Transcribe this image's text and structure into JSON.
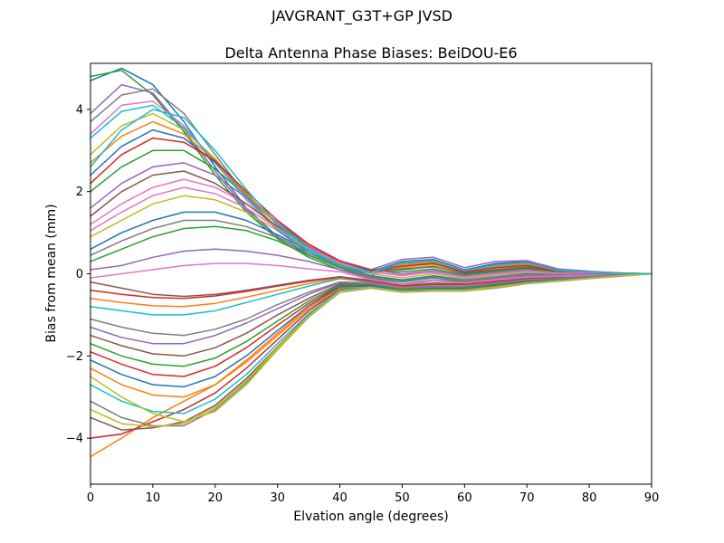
{
  "suptitle": "JAVGRANT_G3T+GP JVSD",
  "chart_data": {
    "type": "line",
    "title": "Delta Antenna Phase Biases: BeiDOU-E6",
    "xlabel": "Elvation angle (degrees)",
    "ylabel": "Bias from mean (mm)",
    "xlim": [
      0,
      90
    ],
    "ylim": [
      -5.12,
      5.12
    ],
    "xticks": [
      0,
      10,
      20,
      30,
      40,
      50,
      60,
      70,
      80,
      90
    ],
    "yticks": [
      -4,
      -2,
      0,
      2,
      4
    ],
    "grid": false,
    "legend": "none",
    "frame_color": "#000000",
    "line_width": 1.5,
    "x": [
      0,
      5,
      10,
      15,
      20,
      25,
      30,
      35,
      40,
      45,
      50,
      55,
      60,
      65,
      70,
      75,
      80,
      85,
      90
    ],
    "series": [
      {
        "color": "#1f77b4",
        "values": [
          4.7,
          5.0,
          4.6,
          3.7,
          2.6,
          1.6,
          0.9,
          0.45,
          0.15,
          0.05,
          0.3,
          0.35,
          0.1,
          0.25,
          0.3,
          0.1,
          0.05,
          0.02,
          0
        ]
      },
      {
        "color": "#ff7f0e",
        "values": [
          -4.45,
          -4.0,
          -3.5,
          -3.1,
          -2.7,
          -2.1,
          -1.45,
          -0.8,
          -0.33,
          -0.27,
          -0.37,
          -0.34,
          -0.34,
          -0.27,
          -0.18,
          -0.13,
          -0.09,
          -0.04,
          0
        ]
      },
      {
        "color": "#2ca02c",
        "values": [
          4.8,
          4.95,
          4.35,
          3.45,
          2.4,
          1.5,
          0.85,
          0.4,
          0.1,
          -0.05,
          0.25,
          0.3,
          0.05,
          0.2,
          0.25,
          0.08,
          0.04,
          0.01,
          0
        ]
      },
      {
        "color": "#d62728",
        "values": [
          -4.0,
          -3.9,
          -3.6,
          -3.3,
          -2.9,
          -2.3,
          -1.6,
          -0.9,
          -0.38,
          -0.3,
          -0.4,
          -0.37,
          -0.37,
          -0.3,
          -0.2,
          -0.15,
          -0.1,
          -0.05,
          0
        ]
      },
      {
        "color": "#9467bd",
        "values": [
          3.9,
          4.6,
          4.4,
          3.5,
          2.5,
          1.55,
          0.9,
          0.5,
          0.2,
          0.1,
          0.35,
          0.4,
          0.15,
          0.3,
          0.32,
          0.12,
          0.06,
          0.02,
          0
        ]
      },
      {
        "color": "#8c564b",
        "values": [
          -3.5,
          -3.8,
          -3.75,
          -3.6,
          -3.2,
          -2.55,
          -1.78,
          -1.0,
          -0.42,
          -0.33,
          -0.43,
          -0.4,
          -0.4,
          -0.33,
          -0.22,
          -0.17,
          -0.11,
          -0.05,
          0
        ]
      },
      {
        "color": "#e377c2",
        "values": [
          3.4,
          4.1,
          4.2,
          3.6,
          2.7,
          1.8,
          1.05,
          0.55,
          0.2,
          0,
          0.2,
          0.28,
          0.06,
          0.18,
          0.22,
          0.07,
          0.03,
          0.01,
          0
        ]
      },
      {
        "color": "#7f7f7f",
        "values": [
          -3.1,
          -3.5,
          -3.7,
          -3.7,
          -3.3,
          -2.65,
          -1.85,
          -1.05,
          -0.45,
          -0.35,
          -0.45,
          -0.42,
          -0.42,
          -0.35,
          -0.24,
          -0.18,
          -0.12,
          -0.06,
          0
        ]
      },
      {
        "color": "#bcbd22",
        "values": [
          2.9,
          3.6,
          3.9,
          3.5,
          2.8,
          1.9,
          1.1,
          0.6,
          0.25,
          0.05,
          0.15,
          0.22,
          0.03,
          0.12,
          0.18,
          0.05,
          0.02,
          0.01,
          0
        ]
      },
      {
        "color": "#17becf",
        "values": [
          -2.7,
          -3.1,
          -3.35,
          -3.4,
          -3.05,
          -2.45,
          -1.7,
          -0.97,
          -0.4,
          -0.32,
          -0.44,
          -0.4,
          -0.4,
          -0.32,
          -0.22,
          -0.16,
          -0.11,
          -0.05,
          0
        ]
      },
      {
        "color": "#1f77b4",
        "values": [
          2.4,
          3.1,
          3.5,
          3.3,
          2.7,
          1.95,
          1.2,
          0.65,
          0.3,
          0.1,
          0.1,
          0.18,
          0,
          0.08,
          0.15,
          0.04,
          0.02,
          0,
          0
        ]
      },
      {
        "color": "#ff7f0e",
        "values": [
          -2.3,
          -2.7,
          -2.95,
          -3.0,
          -2.7,
          -2.15,
          -1.5,
          -0.85,
          -0.35,
          -0.3,
          -0.42,
          -0.38,
          -0.37,
          -0.3,
          -0.2,
          -0.15,
          -0.1,
          -0.05,
          0
        ]
      },
      {
        "color": "#2ca02c",
        "values": [
          2.0,
          2.6,
          3.0,
          3.0,
          2.55,
          1.9,
          1.2,
          0.7,
          0.3,
          0.08,
          0.05,
          0.12,
          -0.03,
          0.05,
          0.12,
          0.03,
          0.01,
          0,
          0
        ]
      },
      {
        "color": "#d62728",
        "values": [
          -1.9,
          -2.2,
          -2.45,
          -2.5,
          -2.25,
          -1.8,
          -1.25,
          -0.72,
          -0.3,
          -0.28,
          -0.4,
          -0.36,
          -0.35,
          -0.27,
          -0.18,
          -0.13,
          -0.09,
          -0.04,
          0
        ]
      },
      {
        "color": "#9467bd",
        "values": [
          1.6,
          2.2,
          2.6,
          2.7,
          2.4,
          1.85,
          1.25,
          0.72,
          0.32,
          0.1,
          0,
          0.08,
          -0.06,
          0.02,
          0.08,
          0.02,
          0.01,
          0,
          0
        ]
      },
      {
        "color": "#8c564b",
        "values": [
          -1.5,
          -1.75,
          -1.95,
          -2.0,
          -1.8,
          -1.45,
          -1.0,
          -0.6,
          -0.25,
          -0.25,
          -0.38,
          -0.33,
          -0.32,
          -0.25,
          -0.16,
          -0.12,
          -0.08,
          -0.04,
          0
        ]
      },
      {
        "color": "#e377c2",
        "values": [
          1.2,
          1.7,
          2.1,
          2.3,
          2.1,
          1.7,
          1.15,
          0.68,
          0.3,
          0.05,
          -0.05,
          0.05,
          -0.1,
          -0.02,
          0.05,
          0.01,
          0,
          0,
          0
        ]
      },
      {
        "color": "#7f7f7f",
        "values": [
          -1.1,
          -1.3,
          -1.45,
          -1.5,
          -1.35,
          -1.1,
          -0.75,
          -0.45,
          -0.2,
          -0.22,
          -0.35,
          -0.3,
          -0.3,
          -0.22,
          -0.14,
          -0.1,
          -0.07,
          -0.03,
          0
        ]
      },
      {
        "color": "#bcbd22",
        "values": [
          0.9,
          1.3,
          1.7,
          1.9,
          1.8,
          1.5,
          1.05,
          0.6,
          0.25,
          0,
          -0.1,
          0,
          -0.12,
          -0.05,
          0.02,
          0,
          0,
          0,
          0
        ]
      },
      {
        "color": "#17becf",
        "values": [
          -0.8,
          -0.9,
          -1.0,
          -1.0,
          -0.9,
          -0.7,
          -0.5,
          -0.3,
          -0.12,
          -0.2,
          -0.32,
          -0.28,
          -0.28,
          -0.2,
          -0.12,
          -0.09,
          -0.06,
          -0.03,
          0
        ]
      },
      {
        "color": "#1f77b4",
        "values": [
          0.6,
          1.0,
          1.3,
          1.5,
          1.5,
          1.3,
          0.95,
          0.55,
          0.2,
          -0.05,
          -0.15,
          -0.05,
          -0.15,
          -0.08,
          0,
          -0.02,
          -0.01,
          0,
          0
        ]
      },
      {
        "color": "#ff7f0e",
        "values": [
          -0.6,
          -0.7,
          -0.78,
          -0.8,
          -0.72,
          -0.57,
          -0.4,
          -0.24,
          -0.1,
          -0.19,
          -0.31,
          -0.27,
          -0.27,
          -0.2,
          -0.12,
          -0.09,
          -0.06,
          -0.03,
          0
        ]
      },
      {
        "color": "#2ca02c",
        "values": [
          0.3,
          0.6,
          0.9,
          1.1,
          1.15,
          1.05,
          0.8,
          0.45,
          0.15,
          -0.1,
          -0.2,
          -0.1,
          -0.18,
          -0.1,
          -0.03,
          -0.03,
          -0.02,
          -0.01,
          0
        ]
      },
      {
        "color": "#d62728",
        "values": [
          -0.4,
          -0.5,
          -0.58,
          -0.6,
          -0.54,
          -0.43,
          -0.3,
          -0.18,
          -0.08,
          -0.18,
          -0.3,
          -0.26,
          -0.26,
          -0.19,
          -0.11,
          -0.08,
          -0.05,
          -0.02,
          0
        ]
      },
      {
        "color": "#9467bd",
        "values": [
          0.1,
          0.2,
          0.4,
          0.55,
          0.6,
          0.55,
          0.45,
          0.3,
          0.1,
          -0.12,
          -0.25,
          -0.15,
          -0.2,
          -0.12,
          -0.05,
          -0.05,
          -0.03,
          -0.01,
          0
        ]
      },
      {
        "color": "#8c564b",
        "values": [
          -0.2,
          -0.35,
          -0.5,
          -0.55,
          -0.5,
          -0.4,
          -0.28,
          -0.16,
          -0.07,
          -0.16,
          -0.28,
          -0.24,
          -0.24,
          -0.17,
          -0.1,
          -0.07,
          -0.04,
          -0.02,
          0
        ]
      },
      {
        "color": "#e377c2",
        "values": [
          -0.1,
          0,
          0.1,
          0.2,
          0.25,
          0.25,
          0.2,
          0.12,
          0.05,
          -0.14,
          -0.26,
          -0.2,
          -0.22,
          -0.15,
          -0.08,
          -0.06,
          -0.04,
          -0.02,
          0
        ]
      },
      {
        "color": "#7f7f7f",
        "values": [
          3.7,
          4.35,
          4.5,
          3.9,
          2.9,
          1.9,
          1.05,
          0.5,
          0.18,
          0.02,
          0.28,
          0.33,
          0.08,
          0.22,
          0.28,
          0.09,
          0.04,
          0.02,
          0
        ]
      },
      {
        "color": "#bcbd22",
        "values": [
          -3.3,
          -3.65,
          -3.72,
          -3.65,
          -3.25,
          -2.6,
          -1.8,
          -1.02,
          -0.43,
          -0.34,
          -0.44,
          -0.41,
          -0.41,
          -0.34,
          -0.23,
          -0.17,
          -0.11,
          -0.05,
          0
        ]
      },
      {
        "color": "#17becf",
        "values": [
          3.3,
          3.95,
          4.1,
          3.55,
          2.75,
          1.85,
          1.08,
          0.56,
          0.21,
          0.03,
          0.24,
          0.3,
          0.07,
          0.19,
          0.24,
          0.08,
          0.03,
          0.01,
          0
        ]
      },
      {
        "color": "#1f77b4",
        "values": [
          -2.1,
          -2.45,
          -2.7,
          -2.75,
          -2.5,
          -2.0,
          -1.38,
          -0.78,
          -0.32,
          -0.29,
          -0.41,
          -0.37,
          -0.36,
          -0.28,
          -0.19,
          -0.14,
          -0.09,
          -0.04,
          0
        ]
      },
      {
        "color": "#ff7f0e",
        "values": [
          2.7,
          3.35,
          3.7,
          3.4,
          2.75,
          1.95,
          1.18,
          0.62,
          0.25,
          0.04,
          0.22,
          0.28,
          0.06,
          0.17,
          0.22,
          0.07,
          0.03,
          0.01,
          0
        ]
      },
      {
        "color": "#2ca02c",
        "values": [
          -1.7,
          -2.0,
          -2.2,
          -2.25,
          -2.05,
          -1.65,
          -1.15,
          -0.66,
          -0.28,
          -0.26,
          -0.39,
          -0.35,
          -0.34,
          -0.26,
          -0.17,
          -0.13,
          -0.08,
          -0.04,
          0
        ]
      },
      {
        "color": "#d62728",
        "values": [
          2.2,
          2.9,
          3.3,
          3.2,
          2.75,
          2.0,
          1.3,
          0.72,
          0.3,
          0.09,
          0.18,
          0.25,
          0.05,
          0.15,
          0.2,
          0.06,
          0.03,
          0.01,
          0
        ]
      },
      {
        "color": "#9467bd",
        "values": [
          -1.3,
          -1.55,
          -1.7,
          -1.7,
          -1.5,
          -1.2,
          -0.85,
          -0.5,
          -0.22,
          -0.24,
          -0.36,
          -0.32,
          -0.31,
          -0.23,
          -0.15,
          -0.11,
          -0.07,
          -0.03,
          0
        ]
      },
      {
        "color": "#8c564b",
        "values": [
          1.4,
          2.0,
          2.4,
          2.5,
          2.2,
          1.7,
          1.15,
          0.65,
          0.28,
          0.07,
          0.12,
          0.17,
          0.02,
          0.1,
          0.16,
          0.05,
          0.02,
          0.01,
          0
        ]
      },
      {
        "color": "#e377c2",
        "values": [
          1.05,
          1.5,
          1.9,
          2.1,
          1.95,
          1.6,
          1.1,
          0.63,
          0.27,
          0.03,
          -0.02,
          0.03,
          -0.08,
          0,
          0.06,
          0.02,
          0.01,
          0,
          0
        ]
      },
      {
        "color": "#7f7f7f",
        "values": [
          0.45,
          0.8,
          1.1,
          1.3,
          1.3,
          1.15,
          0.88,
          0.5,
          0.18,
          -0.08,
          -0.18,
          -0.08,
          -0.16,
          -0.09,
          -0.02,
          -0.02,
          -0.01,
          0,
          0
        ]
      },
      {
        "color": "#bcbd22",
        "values": [
          -2.5,
          -3.0,
          -3.4,
          -3.6,
          -3.35,
          -2.7,
          -1.85,
          -1.03,
          -0.44,
          -0.33,
          -0.43,
          -0.4,
          -0.41,
          -0.33,
          -0.23,
          -0.17,
          -0.11,
          -0.05,
          0
        ]
      },
      {
        "color": "#17becf",
        "values": [
          2.6,
          3.5,
          4.0,
          3.8,
          3.0,
          2.05,
          1.2,
          0.6,
          0.22,
          0.04,
          0.26,
          0.31,
          0.08,
          0.2,
          0.26,
          0.08,
          0.04,
          0.01,
          0
        ]
      }
    ]
  }
}
